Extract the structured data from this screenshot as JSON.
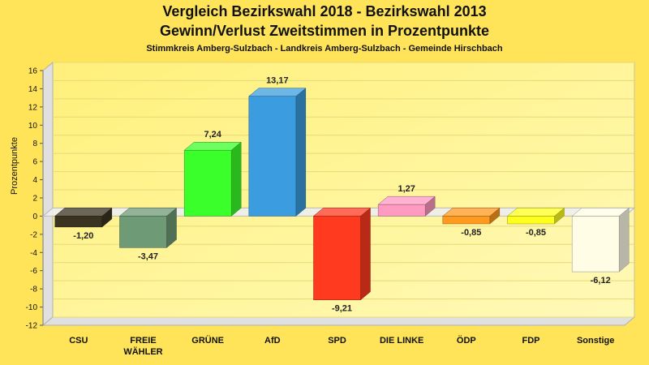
{
  "chart_data": {
    "type": "bar",
    "title": "Vergleich Bezirkswahl 2018 - Bezirkswahl 2013",
    "subtitle": "Gewinn/Verlust Zweitstimmen in Prozentpunkte",
    "caption": "Stimmkreis Amberg-Sulzbach - Landkreis Amberg-Sulzbach - Gemeinde Hirschbach",
    "xlabel": "",
    "ylabel": "Prozentpunkte",
    "ylim": [
      -12,
      16
    ],
    "yticks": [
      -12,
      -10,
      -8,
      -6,
      -4,
      -2,
      0,
      2,
      4,
      6,
      8,
      10,
      12,
      14,
      16
    ],
    "categories": [
      "CSU",
      "FREIE WÄHLER",
      "GRÜNE",
      "AfD",
      "SPD",
      "DIE LINKE",
      "ÖDP",
      "FDP",
      "Sonstige"
    ],
    "category_lines": [
      [
        "CSU"
      ],
      [
        "FREIE",
        "WÄHLER"
      ],
      [
        "GRÜNE"
      ],
      [
        "AfD"
      ],
      [
        "SPD"
      ],
      [
        "DIE LINKE"
      ],
      [
        "ÖDP"
      ],
      [
        "FDP"
      ],
      [
        "Sonstige"
      ]
    ],
    "values": [
      -1.2,
      -3.47,
      7.24,
      13.17,
      -9.21,
      1.27,
      -0.85,
      -0.85,
      -6.12
    ],
    "value_labels": [
      "-1,20",
      "-3,47",
      "7,24",
      "13,17",
      "-9,21",
      "1,27",
      "-0,85",
      "-0,85",
      "-6,12"
    ],
    "colors": [
      "#3a3320",
      "#6f9a76",
      "#3aff2a",
      "#3b9de0",
      "#ff3a1e",
      "#ff9ac0",
      "#ff9a1e",
      "#ffff1e",
      "#fffde6"
    ]
  }
}
